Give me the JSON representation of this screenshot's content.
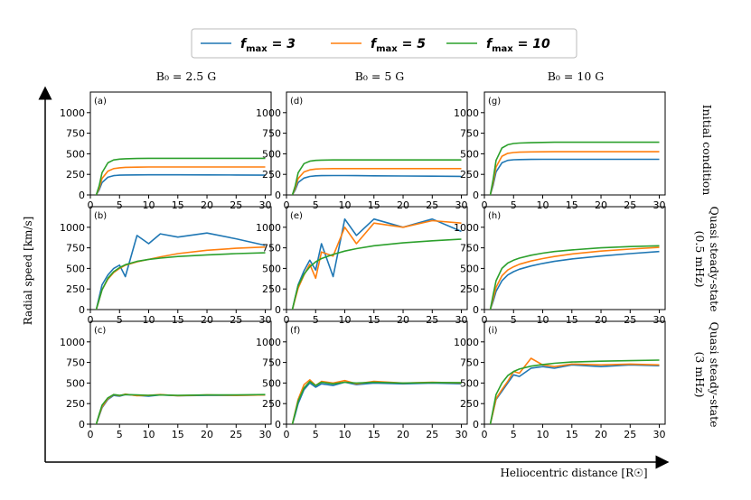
{
  "figure": {
    "legend": [
      {
        "sym": "f",
        "sub": "max",
        "rest": " = 3",
        "color": "#1f77b4"
      },
      {
        "sym": "f",
        "sub": "max",
        "rest": " = 5",
        "color": "#ff7f0e"
      },
      {
        "sym": "f",
        "sub": "max",
        "rest": " = 10",
        "color": "#2ca02c"
      }
    ],
    "column_titles": [
      "B₀ = 2.5 G",
      "B₀ = 5 G",
      "B₀ = 10 G"
    ],
    "row_titles": [
      [
        "Initial condition"
      ],
      [
        "Quasi steady-state",
        "(0.5 mHz)"
      ],
      [
        "Quasi steady-state",
        "(3 mHz)"
      ]
    ],
    "ylabel": "Radial speed [km/s]",
    "xlabel": "Heliocentric distance [R☉]"
  },
  "chart_data": {
    "type": "line",
    "layout": "3x3 grid",
    "xlim": [
      0,
      31
    ],
    "ylim": [
      0,
      1250
    ],
    "xticks": [
      0,
      5,
      10,
      15,
      20,
      25,
      30
    ],
    "yticks": [
      0,
      250,
      500,
      750,
      1000
    ],
    "yticks_shown_rows": [
      [
        0,
        250,
        500,
        750,
        1000
      ],
      [
        0,
        250,
        500,
        750,
        1000
      ],
      [
        0,
        250,
        500,
        750,
        1000
      ]
    ],
    "series_names": [
      "f_max = 3",
      "f_max = 5",
      "f_max = 10"
    ],
    "x": [
      1,
      1.5,
      2,
      3,
      4,
      5,
      6,
      8,
      10,
      12,
      15,
      20,
      25,
      30
    ],
    "panels": [
      {
        "label": "(a)",
        "row": 0,
        "col": 0,
        "series": [
          {
            "name": "f_max = 3",
            "values": [
              0,
              60,
              150,
              215,
              235,
              240,
              242,
              243,
              244,
              244,
              244,
              243,
              242,
              240
            ]
          },
          {
            "name": "f_max = 5",
            "values": [
              0,
              80,
              200,
              290,
              320,
              330,
              335,
              338,
              340,
              340,
              340,
              340,
              340,
              340
            ]
          },
          {
            "name": "f_max = 10",
            "values": [
              0,
              110,
              270,
              390,
              425,
              435,
              440,
              443,
              445,
              445,
              445,
              445,
              445,
              445
            ]
          }
        ]
      },
      {
        "label": "(b)",
        "row": 1,
        "col": 0,
        "series": [
          {
            "name": "f_max = 3",
            "values": [
              0,
              150,
              300,
              420,
              500,
              540,
              400,
              900,
              800,
              920,
              880,
              930,
              860,
              780
            ]
          },
          {
            "name": "f_max = 5",
            "values": [
              0,
              120,
              240,
              370,
              450,
              500,
              540,
              580,
              610,
              640,
              680,
              720,
              745,
              760
            ]
          },
          {
            "name": "f_max = 10",
            "values": [
              0,
              120,
              240,
              380,
              460,
              510,
              545,
              585,
              610,
              625,
              645,
              665,
              680,
              690
            ]
          }
        ]
      },
      {
        "label": "(c)",
        "row": 2,
        "col": 0,
        "series": [
          {
            "name": "f_max = 3",
            "values": [
              0,
              100,
              200,
              300,
              350,
              340,
              360,
              350,
              340,
              355,
              345,
              350,
              350,
              355
            ]
          },
          {
            "name": "f_max = 5",
            "values": [
              0,
              110,
              210,
              310,
              360,
              345,
              365,
              345,
              350,
              360,
              345,
              355,
              350,
              355
            ]
          },
          {
            "name": "f_max = 10",
            "values": [
              0,
              120,
              230,
              320,
              360,
              350,
              360,
              355,
              350,
              355,
              350,
              355,
              355,
              360
            ]
          }
        ]
      },
      {
        "label": "(d)",
        "row": 0,
        "col": 1,
        "series": [
          {
            "name": "f_max = 3",
            "values": [
              0,
              60,
              150,
              205,
              225,
              232,
              235,
              236,
              236,
              235,
              233,
              230,
              228,
              225
            ]
          },
          {
            "name": "f_max = 5",
            "values": [
              0,
              80,
              200,
              280,
              305,
              315,
              318,
              320,
              320,
              320,
              320,
              320,
              320,
              320
            ]
          },
          {
            "name": "f_max = 10",
            "values": [
              0,
              110,
              270,
              380,
              410,
              420,
              423,
              425,
              425,
              425,
              425,
              425,
              425,
              425
            ]
          }
        ]
      },
      {
        "label": "(e)",
        "row": 1,
        "col": 1,
        "series": [
          {
            "name": "f_max = 3",
            "values": [
              0,
              150,
              300,
              470,
              600,
              480,
              800,
              400,
              1100,
              900,
              1100,
              1000,
              1100,
              950
            ]
          },
          {
            "name": "f_max = 5",
            "values": [
              0,
              130,
              260,
              420,
              550,
              380,
              700,
              650,
              1000,
              800,
              1050,
              1000,
              1080,
              1050
            ]
          },
          {
            "name": "f_max = 10",
            "values": [
              0,
              150,
              290,
              430,
              520,
              580,
              620,
              670,
              710,
              740,
              775,
              810,
              835,
              855
            ]
          }
        ]
      },
      {
        "label": "(f)",
        "row": 2,
        "col": 1,
        "series": [
          {
            "name": "f_max = 3",
            "values": [
              0,
              120,
              250,
              420,
              500,
              450,
              490,
              470,
              510,
              480,
              500,
              490,
              500,
              490
            ]
          },
          {
            "name": "f_max = 5",
            "values": [
              0,
              150,
              300,
              480,
              540,
              470,
              520,
              500,
              530,
              490,
              520,
              500,
              510,
              500
            ]
          },
          {
            "name": "f_max = 10",
            "values": [
              0,
              140,
              280,
              440,
              520,
              470,
              510,
              490,
              510,
              500,
              510,
              500,
              505,
              505
            ]
          }
        ]
      },
      {
        "label": "(g)",
        "row": 0,
        "col": 2,
        "series": [
          {
            "name": "f_max = 3",
            "values": [
              0,
              120,
              280,
              390,
              420,
              428,
              430,
              432,
              433,
              433,
              433,
              433,
              433,
              433
            ]
          },
          {
            "name": "f_max = 5",
            "values": [
              0,
              150,
              340,
              470,
              505,
              515,
              520,
              523,
              524,
              525,
              525,
              525,
              525,
              525
            ]
          },
          {
            "name": "f_max = 10",
            "values": [
              0,
              190,
              420,
              570,
              610,
              625,
              630,
              635,
              638,
              640,
              640,
              640,
              640,
              640
            ]
          }
        ]
      },
      {
        "label": "(h)",
        "row": 1,
        "col": 2,
        "series": [
          {
            "name": "f_max = 3",
            "values": [
              0,
              100,
              220,
              350,
              420,
              460,
              490,
              530,
              560,
              585,
              615,
              650,
              680,
              705
            ]
          },
          {
            "name": "f_max = 5",
            "values": [
              0,
              130,
              270,
              410,
              480,
              520,
              550,
              590,
              620,
              645,
              675,
              710,
              735,
              755
            ]
          },
          {
            "name": "f_max = 10",
            "values": [
              0,
              180,
              350,
              500,
              565,
              600,
              625,
              660,
              685,
              705,
              725,
              750,
              765,
              775
            ]
          }
        ]
      },
      {
        "label": "(i)",
        "row": 2,
        "col": 2,
        "series": [
          {
            "name": "f_max = 3",
            "values": [
              0,
              150,
              300,
              400,
              500,
              600,
              580,
              680,
              700,
              680,
              720,
              700,
              720,
              710
            ]
          },
          {
            "name": "f_max = 5",
            "values": [
              0,
              150,
              310,
              420,
              520,
              640,
              620,
              800,
              720,
              700,
              730,
              720,
              730,
              720
            ]
          },
          {
            "name": "f_max = 10",
            "values": [
              0,
              180,
              360,
              500,
              590,
              640,
              670,
              705,
              725,
              740,
              755,
              765,
              772,
              778
            ]
          }
        ]
      }
    ]
  }
}
